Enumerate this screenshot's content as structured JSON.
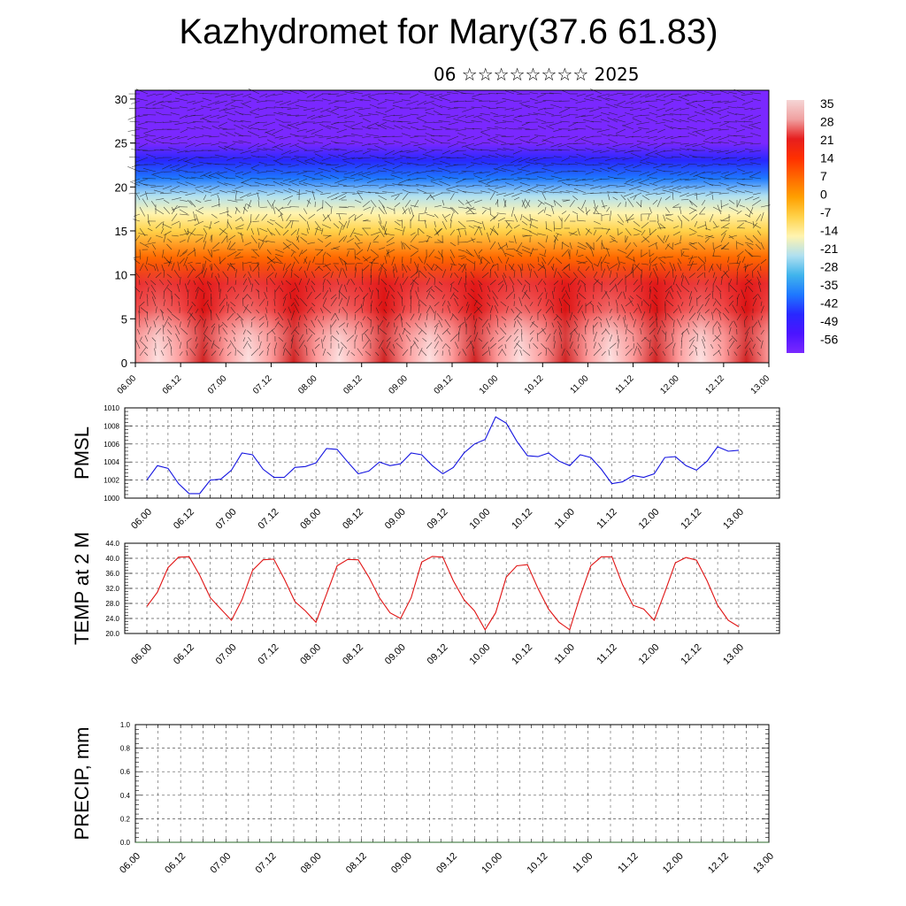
{
  "title": "Kazhydromet for Mary(37.6 61.83)",
  "subtitle": "06 ☆☆☆☆☆☆☆☆ 2025",
  "time_labels": [
    "06.00",
    "06.12",
    "07.00",
    "07.12",
    "08.00",
    "08.12",
    "09.00",
    "09.12",
    "10.00",
    "10.12",
    "11.00",
    "11.12",
    "12.00",
    "12.12",
    "13.00"
  ],
  "chart_data": [
    {
      "type": "heatmap",
      "name": "vertical temperature cross-section with wind barbs",
      "y_ticks": [
        0,
        5,
        10,
        15,
        20,
        25,
        30
      ],
      "ylim": [
        0,
        31
      ],
      "colorbar": {
        "labels": [
          "35",
          "28",
          "21",
          "14",
          "7",
          "0",
          "-7",
          "-14",
          "-21",
          "-28",
          "-35",
          "-42",
          "-49",
          "-56"
        ],
        "colors": [
          "#f5d5d5",
          "#f0a0a0",
          "#e61e1e",
          "#ff3000",
          "#ff6a00",
          "#ffa000",
          "#ffd24a",
          "#fff4b0",
          "#b0e0f0",
          "#40b4ec",
          "#1e78ff",
          "#2828ff",
          "#4b14ff",
          "#7a28ff"
        ]
      },
      "temperature_by_height": [
        {
          "km": 0,
          "c": 40
        },
        {
          "km": 3,
          "c": 30
        },
        {
          "km": 6,
          "c": 24
        },
        {
          "km": 9,
          "c": 20
        },
        {
          "km": 12,
          "c": 10
        },
        {
          "km": 15,
          "c": -4
        },
        {
          "km": 17,
          "c": -12
        },
        {
          "km": 19,
          "c": -20
        },
        {
          "km": 21,
          "c": -32
        },
        {
          "km": 23,
          "c": -44
        },
        {
          "km": 25,
          "c": -55
        },
        {
          "km": 27,
          "c": -60
        },
        {
          "km": 31,
          "c": -60
        }
      ]
    },
    {
      "type": "line",
      "ylabel": "PMSL",
      "y_ticks": [
        "1010",
        "1008",
        "1006",
        "1004",
        "1002",
        "1000"
      ],
      "ylim": [
        1000,
        1010
      ],
      "color": "#1414e0",
      "values": [
        1002.0,
        1003.6,
        1003.3,
        1001.6,
        1000.5,
        1000.5,
        1002.0,
        1002.1,
        1003.1,
        1005.0,
        1004.8,
        1003.2,
        1002.3,
        1002.3,
        1003.4,
        1003.5,
        1003.9,
        1005.5,
        1005.4,
        1004.0,
        1002.7,
        1003.0,
        1004.0,
        1003.6,
        1003.8,
        1005.0,
        1004.8,
        1003.6,
        1002.7,
        1003.4,
        1005.0,
        1006.0,
        1006.5,
        1009.0,
        1008.3,
        1006.3,
        1004.7,
        1004.6,
        1005.0,
        1004.1,
        1003.6,
        1004.8,
        1004.5,
        1003.2,
        1001.6,
        1001.8,
        1002.5,
        1002.3,
        1002.7,
        1004.5,
        1004.6,
        1003.6,
        1003.1,
        1004.1,
        1005.7,
        1005.2,
        1005.3
      ]
    },
    {
      "type": "line",
      "ylabel": "TEMP at 2 M",
      "y_ticks": [
        "44.0",
        "40.0",
        "36.0",
        "32.0",
        "28.0",
        "24.0",
        "20.0"
      ],
      "ylim": [
        20,
        44
      ],
      "color": "#e01414",
      "values": [
        27.2,
        31.0,
        37.5,
        40.3,
        40.4,
        35.5,
        29.5,
        26.5,
        23.5,
        29.0,
        36.8,
        39.6,
        39.8,
        34.5,
        28.5,
        26.0,
        23.0,
        30.5,
        38.0,
        39.7,
        39.6,
        35.0,
        29.5,
        25.5,
        24.0,
        29.5,
        39.0,
        40.5,
        40.3,
        34.0,
        29.0,
        26.0,
        21.0,
        25.5,
        35.0,
        38.0,
        38.3,
        32.0,
        26.5,
        23.0,
        21.0,
        30.0,
        38.0,
        40.4,
        40.4,
        33.0,
        27.5,
        26.5,
        23.5,
        31.0,
        38.8,
        40.2,
        39.5,
        34.0,
        27.5,
        23.5,
        21.8
      ]
    },
    {
      "type": "line",
      "ylabel": "PRECIP, mm",
      "y_ticks": [
        "1.0",
        "0.8",
        "0.6",
        "0.4",
        "0.2",
        "0.0"
      ],
      "ylim": [
        0,
        1
      ],
      "color": "#2a6a2a",
      "values": [
        0,
        0,
        0,
        0,
        0,
        0,
        0,
        0,
        0,
        0,
        0,
        0,
        0,
        0,
        0,
        0,
        0,
        0,
        0,
        0,
        0,
        0,
        0,
        0,
        0,
        0,
        0,
        0,
        0,
        0,
        0,
        0,
        0,
        0,
        0,
        0,
        0,
        0,
        0,
        0,
        0,
        0,
        0,
        0,
        0,
        0,
        0,
        0,
        0,
        0,
        0,
        0,
        0,
        0,
        0,
        0,
        0
      ]
    }
  ]
}
